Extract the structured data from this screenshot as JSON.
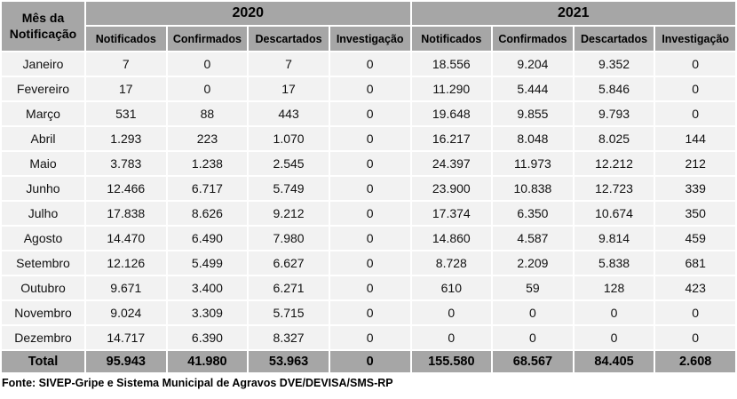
{
  "table": {
    "corner_header": "Mês da Notificação",
    "year_groups": [
      "2020",
      "2021"
    ],
    "sub_headers": [
      "Notificados",
      "Confirmados",
      "Descartados",
      "Investigação"
    ],
    "rows": [
      {
        "month": "Janeiro",
        "y2020": [
          "7",
          "0",
          "7",
          "0"
        ],
        "y2021": [
          "18.556",
          "9.204",
          "9.352",
          "0"
        ]
      },
      {
        "month": "Fevereiro",
        "y2020": [
          "17",
          "0",
          "17",
          "0"
        ],
        "y2021": [
          "11.290",
          "5.444",
          "5.846",
          "0"
        ]
      },
      {
        "month": "Março",
        "y2020": [
          "531",
          "88",
          "443",
          "0"
        ],
        "y2021": [
          "19.648",
          "9.855",
          "9.793",
          "0"
        ]
      },
      {
        "month": "Abril",
        "y2020": [
          "1.293",
          "223",
          "1.070",
          "0"
        ],
        "y2021": [
          "16.217",
          "8.048",
          "8.025",
          "144"
        ]
      },
      {
        "month": "Maio",
        "y2020": [
          "3.783",
          "1.238",
          "2.545",
          "0"
        ],
        "y2021": [
          "24.397",
          "11.973",
          "12.212",
          "212"
        ]
      },
      {
        "month": "Junho",
        "y2020": [
          "12.466",
          "6.717",
          "5.749",
          "0"
        ],
        "y2021": [
          "23.900",
          "10.838",
          "12.723",
          "339"
        ]
      },
      {
        "month": "Julho",
        "y2020": [
          "17.838",
          "8.626",
          "9.212",
          "0"
        ],
        "y2021": [
          "17.374",
          "6.350",
          "10.674",
          "350"
        ]
      },
      {
        "month": "Agosto",
        "y2020": [
          "14.470",
          "6.490",
          "7.980",
          "0"
        ],
        "y2021": [
          "14.860",
          "4.587",
          "9.814",
          "459"
        ]
      },
      {
        "month": "Setembro",
        "y2020": [
          "12.126",
          "5.499",
          "6.627",
          "0"
        ],
        "y2021": [
          "8.728",
          "2.209",
          "5.838",
          "681"
        ]
      },
      {
        "month": "Outubro",
        "y2020": [
          "9.671",
          "3.400",
          "6.271",
          "0"
        ],
        "y2021": [
          "610",
          "59",
          "128",
          "423"
        ]
      },
      {
        "month": "Novembro",
        "y2020": [
          "9.024",
          "3.309",
          "5.715",
          "0"
        ],
        "y2021": [
          "0",
          "0",
          "0",
          "0"
        ]
      },
      {
        "month": "Dezembro",
        "y2020": [
          "14.717",
          "6.390",
          "8.327",
          "0"
        ],
        "y2021": [
          "0",
          "0",
          "0",
          "0"
        ]
      }
    ],
    "total": {
      "label": "Total",
      "y2020": [
        "95.943",
        "41.980",
        "53.963",
        "0"
      ],
      "y2021": [
        "155.580",
        "68.567",
        "84.405",
        "2.608"
      ]
    }
  },
  "footer": {
    "source": "Fonte: SIVEP-Gripe e Sistema Municipal de Agravos DVE/DEVISA/SMS-RP"
  },
  "colors": {
    "header_bg": "#a6a6a6",
    "total_bg": "#a6a6a6",
    "cell_bg": "#f2f2f2",
    "gap": "#ffffff",
    "text": "#000000"
  }
}
